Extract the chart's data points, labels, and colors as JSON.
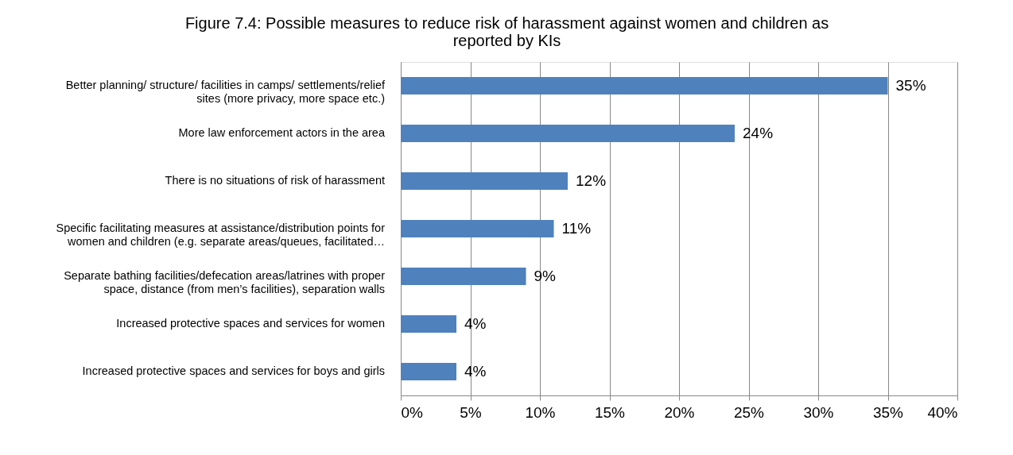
{
  "chart_data": {
    "type": "bar",
    "orientation": "horizontal",
    "title": "Figure 7.4: Possible measures to reduce risk of harassment against women and children as reported by KIs",
    "categories": [
      "Better planning/ structure/ facilities in camps/ settlements/relief sites (more privacy, more space etc.)",
      "More law enforcement actors in the area",
      "There is no situations of risk of harassment",
      "Specific facilitating measures at assistance/distribution points for women and children (e.g. separate areas/queues, facilitated…",
      "Separate bathing facilities/defecation areas/latrines with proper space, distance (from men’s facilities), separation walls",
      "Increased protective spaces and services for women",
      "Increased protective spaces and services for boys and girls"
    ],
    "values": [
      35,
      24,
      12,
      11,
      9,
      4,
      4
    ],
    "value_labels": [
      "35%",
      "24%",
      "12%",
      "11%",
      "9%",
      "4%",
      "4%"
    ],
    "color": "#4f81bd",
    "xlim": [
      0,
      40
    ],
    "xticks": [
      {
        "value": 0,
        "label": "0%"
      },
      {
        "value": 5,
        "label": "5%"
      },
      {
        "value": 10,
        "label": "10%"
      },
      {
        "value": 15,
        "label": "15%"
      },
      {
        "value": 20,
        "label": "20%"
      },
      {
        "value": 25,
        "label": "25%"
      },
      {
        "value": 30,
        "label": "30%"
      },
      {
        "value": 35,
        "label": "35%"
      },
      {
        "value": 40,
        "label": "40%"
      }
    ],
    "grid": "x"
  }
}
